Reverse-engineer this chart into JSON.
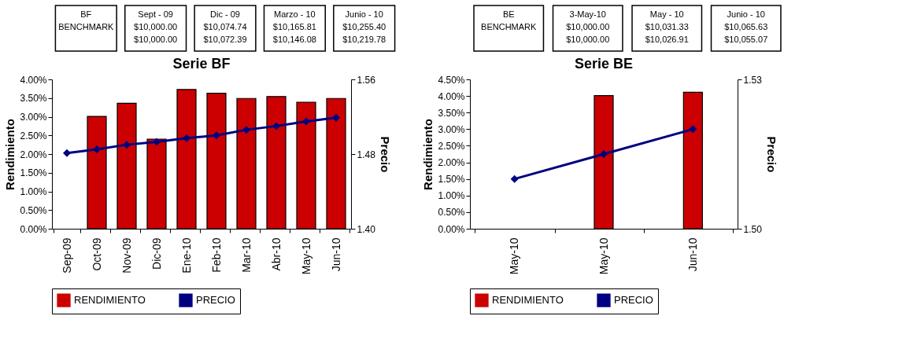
{
  "chart_data": [
    {
      "type": "bar",
      "title": "Serie BF",
      "ylabel": "Rendimiento",
      "y2label": "Precio",
      "annotations": [
        "BF\nBENCHMARK",
        "Sept - 09\n$10,000.00\n$10,000.00",
        "Dic - 09\n$10,074.74\n$10,072.39",
        "Marzo - 10\n$10,165.81\n$10,146.08",
        "Junio - 10\n$10,255.40\n$10,219.78"
      ],
      "categories": [
        "Sep-09",
        "Oct-09",
        "Nov-09",
        "Dic-09",
        "Ene-10",
        "Feb-10",
        "Mar-10",
        "Abr-10",
        "May-10",
        "Jun-10"
      ],
      "series": [
        {
          "name": "RENDIMIENTO",
          "color": "#cc0000",
          "values": [
            null,
            3.01,
            3.36,
            2.4,
            3.73,
            3.63,
            3.49,
            3.54,
            3.39,
            3.49
          ]
        },
        {
          "name": "PRECIO",
          "type": "line",
          "axis": "y2",
          "color": "#000080",
          "marker": "diamond",
          "values": [
            1.481,
            1.485,
            1.49,
            1.493,
            1.497,
            1.5,
            1.506,
            1.51,
            1.515,
            1.519
          ]
        }
      ],
      "ylim": [
        0,
        4
      ],
      "yticks": [
        {
          "value": 0,
          "label": "0.00%"
        },
        {
          "value": 0.5,
          "label": "0.50%"
        },
        {
          "value": 1,
          "label": "1.00%"
        },
        {
          "value": 1.5,
          "label": "1.50%"
        },
        {
          "value": 2,
          "label": "2.00%"
        },
        {
          "value": 2.5,
          "label": "2.50%"
        },
        {
          "value": 3,
          "label": "3.00%"
        },
        {
          "value": 3.5,
          "label": "3.50%"
        },
        {
          "value": 4,
          "label": "4.00%"
        }
      ],
      "y2lim": [
        1.4,
        1.56
      ],
      "y2ticks": [
        {
          "value": 1.4,
          "label": "1.40"
        },
        {
          "value": 1.48,
          "label": "1.48"
        },
        {
          "value": 1.56,
          "label": "1.56"
        }
      ],
      "grid": false,
      "legend": "bottom"
    },
    {
      "type": "bar",
      "title": "Serie BE",
      "ylabel": "Rendimiento",
      "y2label": "Precio",
      "annotations": [
        "BE\nBENCHMARK",
        "3-May-10\n$10,000.00\n$10,000.00",
        "May - 10\n$10,031.33\n$10,026.91",
        "Junio - 10\n$10,065.63\n$10,055.07"
      ],
      "categories": [
        "May-10",
        "May-10",
        "Jun-10"
      ],
      "series": [
        {
          "name": "RENDIMIENTO",
          "color": "#cc0000",
          "values": [
            null,
            4.01,
            4.11
          ]
        },
        {
          "name": "PRECIO",
          "type": "line",
          "axis": "y2",
          "color": "#000080",
          "marker": "diamond",
          "values": [
            1.51,
            1.515,
            1.52
          ]
        }
      ],
      "ylim": [
        0,
        4.5
      ],
      "yticks": [
        {
          "value": 0,
          "label": "0.00%"
        },
        {
          "value": 0.5,
          "label": "0.50%"
        },
        {
          "value": 1,
          "label": "1.00%"
        },
        {
          "value": 1.5,
          "label": "1.50%"
        },
        {
          "value": 2,
          "label": "2.00%"
        },
        {
          "value": 2.5,
          "label": "2.50%"
        },
        {
          "value": 3,
          "label": "3.00%"
        },
        {
          "value": 3.5,
          "label": "3.50%"
        },
        {
          "value": 4,
          "label": "4.00%"
        },
        {
          "value": 4.5,
          "label": "4.50%"
        }
      ],
      "y2lim": [
        1.5,
        1.53
      ],
      "y2ticks": [
        {
          "value": 1.5,
          "label": "1.50"
        },
        {
          "value": 1.53,
          "label": "1.53"
        }
      ],
      "grid": false,
      "legend": "bottom"
    }
  ]
}
